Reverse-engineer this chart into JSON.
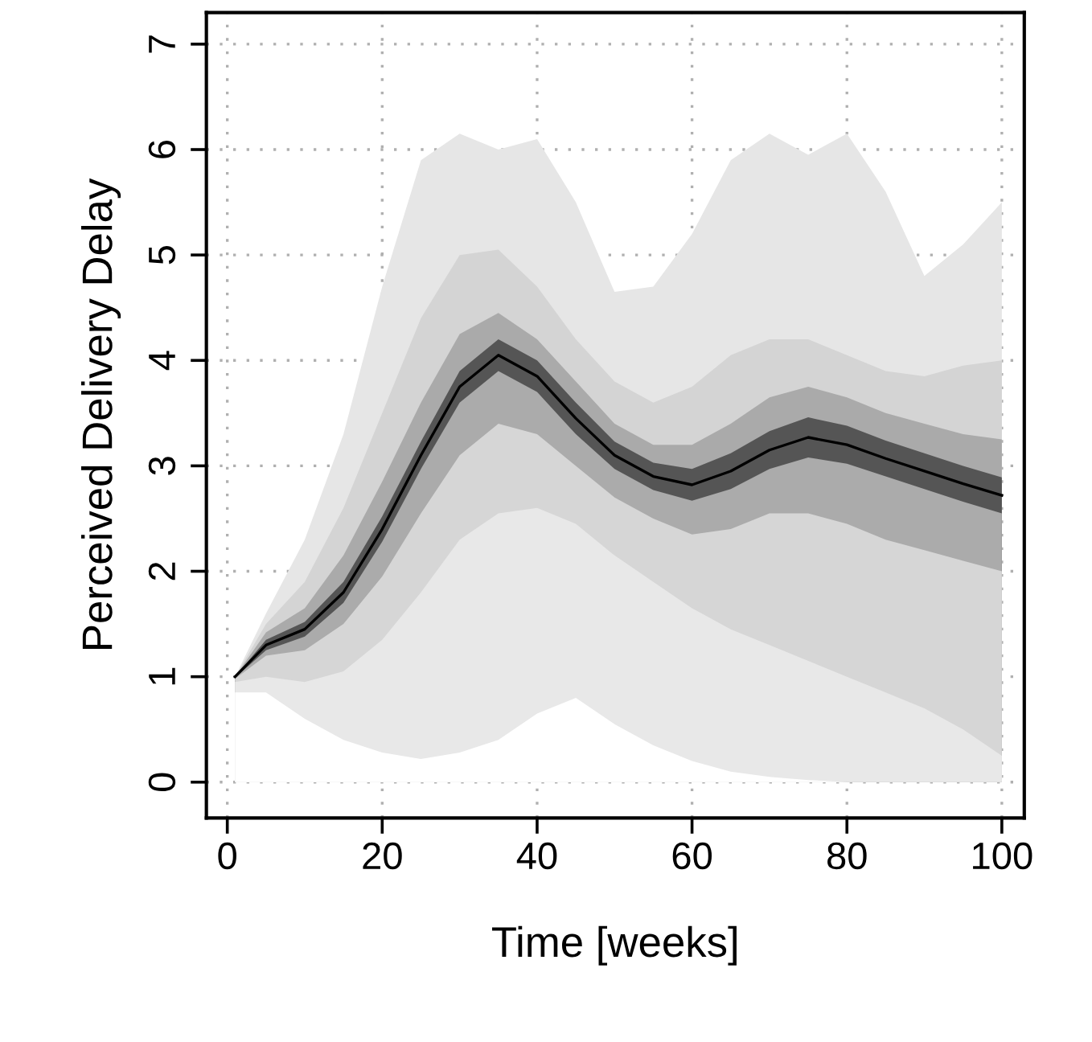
{
  "chart_data": {
    "type": "area",
    "xlabel": "Time [weeks]",
    "ylabel": "Perceived Delivery Delay",
    "x": [
      1,
      5,
      10,
      15,
      20,
      25,
      30,
      35,
      40,
      45,
      50,
      55,
      60,
      65,
      70,
      75,
      80,
      85,
      90,
      95,
      100
    ],
    "series": [
      {
        "color": "#e6e6e6",
        "values": [
          1.0,
          1.6,
          2.3,
          3.3,
          4.7,
          5.9,
          6.15,
          6.0,
          6.1,
          5.5,
          4.65,
          4.7,
          5.2,
          5.9,
          6.15,
          5.95,
          6.15,
          5.6,
          4.8,
          5.1,
          5.5
        ]
      },
      {
        "color": "#d4d4d4",
        "values": [
          1.0,
          1.5,
          1.9,
          2.6,
          3.5,
          4.4,
          5.0,
          5.05,
          4.7,
          4.2,
          3.8,
          3.6,
          3.75,
          4.05,
          4.2,
          4.2,
          4.05,
          3.9,
          3.85,
          3.95,
          4.0
        ]
      },
      {
        "color": "#aaaaaa",
        "values": [
          1.0,
          1.42,
          1.65,
          2.15,
          2.85,
          3.6,
          4.25,
          4.45,
          4.2,
          3.8,
          3.4,
          3.2,
          3.2,
          3.4,
          3.65,
          3.75,
          3.65,
          3.5,
          3.4,
          3.3,
          3.25
        ]
      },
      {
        "color": "#555555",
        "values": [
          1.0,
          1.35,
          1.52,
          1.9,
          2.52,
          3.23,
          3.9,
          4.2,
          4.0,
          3.6,
          3.23,
          3.03,
          2.97,
          3.12,
          3.33,
          3.46,
          3.38,
          3.24,
          3.12,
          3.0,
          2.89
        ]
      },
      {
        "color": "#ababab",
        "values": [
          0.99,
          1.25,
          1.38,
          1.7,
          2.28,
          2.97,
          3.6,
          3.9,
          3.7,
          3.3,
          2.97,
          2.77,
          2.67,
          2.78,
          2.97,
          3.08,
          3.02,
          2.9,
          2.78,
          2.66,
          2.55
        ]
      },
      {
        "color": "#d6d6d6",
        "values": [
          0.98,
          1.2,
          1.25,
          1.5,
          1.95,
          2.55,
          3.1,
          3.4,
          3.3,
          3.0,
          2.7,
          2.5,
          2.35,
          2.4,
          2.55,
          2.55,
          2.45,
          2.3,
          2.2,
          2.1,
          2.0
        ]
      },
      {
        "color": "#e8e8e8",
        "values": [
          0.95,
          1.0,
          0.95,
          1.05,
          1.35,
          1.8,
          2.3,
          2.55,
          2.6,
          2.45,
          2.15,
          1.9,
          1.65,
          1.45,
          1.3,
          1.15,
          1.0,
          0.85,
          0.7,
          0.5,
          0.25
        ]
      },
      {
        "color": "#ffffff",
        "values": [
          0.85,
          0.85,
          0.6,
          0.4,
          0.28,
          0.22,
          0.28,
          0.4,
          0.65,
          0.8,
          0.55,
          0.35,
          0.2,
          0.1,
          0.05,
          0.02,
          0.0,
          0.0,
          0.0,
          0.0,
          0.0
        ]
      },
      {
        "type": "line",
        "color": "#000000",
        "values": [
          1.0,
          1.3,
          1.45,
          1.8,
          2.4,
          3.1,
          3.75,
          4.05,
          3.85,
          3.45,
          3.1,
          2.9,
          2.82,
          2.95,
          3.15,
          3.27,
          3.2,
          3.07,
          2.95,
          2.83,
          2.72
        ]
      }
    ],
    "xlim": [
      -2.7,
      102.9
    ],
    "ylim": [
      -0.34,
      7.3
    ],
    "xticks": [
      0,
      20,
      40,
      60,
      80,
      100
    ],
    "yticks": [
      0,
      1,
      2,
      3,
      4,
      5,
      6,
      7
    ],
    "grid": true,
    "marker": "none",
    "line_style": "solid"
  }
}
